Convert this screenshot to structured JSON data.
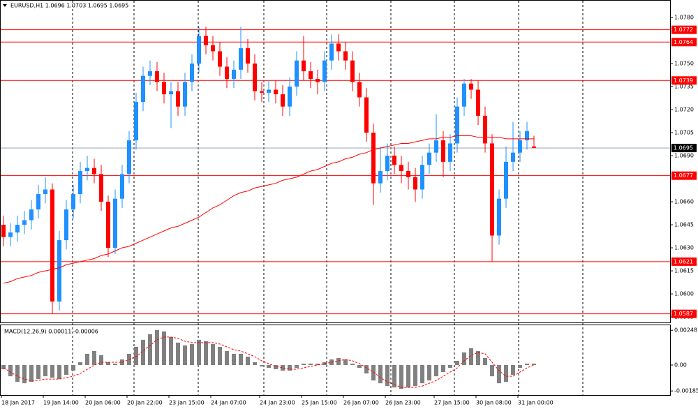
{
  "chart_data": {
    "type": "candlestick",
    "title": "EURUSD,H1  1.0696 1.0703 1.0695 1.0695",
    "categories": [
      "18 Jan 2017",
      null,
      null,
      null,
      null,
      null,
      "19 Jan 14:00",
      null,
      null,
      null,
      null,
      null,
      "20 Jan 06:00",
      null,
      null,
      null,
      null,
      null,
      "20 Jan 22:00",
      null,
      null,
      null,
      null,
      null,
      "23 Jan 15:00",
      null,
      null,
      null,
      null,
      null,
      "24 Jan 07:00",
      null,
      null,
      null,
      null,
      null,
      null,
      "24 Jan 23:00",
      null,
      null,
      null,
      null,
      null,
      "25 Jan 15:00",
      null,
      null,
      null,
      null,
      null,
      "26 Jan 07:00",
      null,
      null,
      null,
      null,
      null,
      "26 Jan 23:00",
      null,
      null,
      null,
      null,
      null,
      null,
      "27 Jan 15:00",
      null,
      null,
      null,
      null,
      null,
      "30 Jan 08:00",
      null,
      null,
      null,
      null,
      null,
      "31 Jan 00:00",
      null,
      null
    ],
    "open": [
      1.0645,
      1.0637,
      1.064,
      1.0645,
      1.0648,
      1.0655,
      1.0665,
      1.0668,
      1.0595,
      1.0635,
      1.0655,
      1.0665,
      1.068,
      1.0682,
      1.0678,
      1.066,
      1.063,
      1.0662,
      1.0678,
      1.07,
      1.0725,
      1.0742,
      1.0745,
      1.0738,
      1.073,
      1.0732,
      1.0722,
      1.0738,
      1.075,
      1.0768,
      1.0762,
      1.0758,
      1.0748,
      1.074,
      1.0746,
      1.076,
      1.075,
      1.0732,
      1.0731,
      1.0733,
      1.073,
      1.0722,
      1.0735,
      1.0752,
      1.0745,
      1.074,
      1.0738,
      1.0752,
      1.0763,
      1.0758,
      1.0752,
      1.0738,
      1.0728,
      1.0705,
      1.0672,
      1.068,
      1.069,
      1.0684,
      1.068,
      1.0676,
      1.0668,
      1.0684,
      1.0692,
      1.07,
      1.0686,
      1.0698,
      1.0722,
      1.0737,
      1.0733,
      1.0716,
      1.0698,
      1.0638,
      1.0662,
      1.0686,
      1.0692,
      1.07,
      1.0696
    ],
    "high": [
      1.0651,
      1.0646,
      1.0651,
      1.0654,
      1.0661,
      1.0671,
      1.0676,
      1.0672,
      1.0641,
      1.0661,
      1.0671,
      1.0686,
      1.069,
      1.0688,
      1.0684,
      1.0664,
      1.0668,
      1.0684,
      1.0706,
      1.0731,
      1.0748,
      1.0752,
      1.0751,
      1.0744,
      1.0738,
      1.0738,
      1.0744,
      1.0756,
      1.0774,
      1.0774,
      1.0768,
      1.0764,
      1.0754,
      1.0752,
      1.0774,
      1.0766,
      1.0756,
      1.0738,
      1.0739,
      1.0739,
      1.0736,
      1.0741,
      1.0758,
      1.0768,
      1.0751,
      1.0746,
      1.0758,
      1.0769,
      1.0769,
      1.0764,
      1.0758,
      1.0744,
      1.0734,
      1.0711,
      1.0696,
      1.0698,
      1.0696,
      1.069,
      1.0686,
      1.0682,
      1.069,
      1.0698,
      1.0717,
      1.0706,
      1.0704,
      1.0728,
      1.074,
      1.074,
      1.0739,
      1.0722,
      1.0704,
      1.0668,
      1.0696,
      1.0712,
      1.0706,
      1.0712,
      1.0703
    ],
    "low": [
      1.0631,
      1.0631,
      1.0634,
      1.0639,
      1.0642,
      1.0649,
      1.0659,
      1.0587,
      1.0589,
      1.0629,
      1.0649,
      1.0659,
      1.0674,
      1.0672,
      1.0654,
      1.0624,
      1.0626,
      1.0656,
      1.0672,
      1.0694,
      1.0719,
      1.0736,
      1.0732,
      1.0724,
      1.0708,
      1.0716,
      1.0716,
      1.0732,
      1.0744,
      1.0756,
      1.0752,
      1.0742,
      1.0734,
      1.0734,
      1.074,
      1.0744,
      1.0726,
      1.0725,
      1.0725,
      1.0724,
      1.0716,
      1.0716,
      1.0729,
      1.0739,
      1.0734,
      1.073,
      1.0732,
      1.0746,
      1.0752,
      1.0746,
      1.0732,
      1.0722,
      1.0699,
      1.0658,
      1.0666,
      1.0674,
      1.0678,
      1.0672,
      1.0668,
      1.066,
      1.0662,
      1.0678,
      1.0686,
      1.0676,
      1.068,
      1.0692,
      1.0716,
      1.0727,
      1.071,
      1.0692,
      1.0621,
      1.0632,
      1.0656,
      1.068,
      1.0686,
      1.0694,
      1.0695
    ],
    "close": [
      1.0637,
      1.064,
      1.0645,
      1.0648,
      1.0655,
      1.0665,
      1.0668,
      1.0595,
      1.0635,
      1.0655,
      1.0665,
      1.068,
      1.0682,
      1.0678,
      1.066,
      1.063,
      1.0662,
      1.0678,
      1.07,
      1.0725,
      1.0742,
      1.0745,
      1.0738,
      1.073,
      1.0732,
      1.0722,
      1.0738,
      1.075,
      1.0768,
      1.0762,
      1.0758,
      1.0748,
      1.074,
      1.0746,
      1.076,
      1.075,
      1.0732,
      1.0731,
      1.0733,
      1.073,
      1.0722,
      1.0735,
      1.0752,
      1.0745,
      1.074,
      1.0738,
      1.0752,
      1.0763,
      1.0758,
      1.0752,
      1.0738,
      1.0728,
      1.0705,
      1.0672,
      1.068,
      1.069,
      1.0684,
      1.068,
      1.0676,
      1.0668,
      1.0684,
      1.0692,
      1.07,
      1.0686,
      1.0698,
      1.0722,
      1.0737,
      1.0733,
      1.0716,
      1.0698,
      1.0638,
      1.0662,
      1.0686,
      1.0692,
      1.07,
      1.0706,
      1.0695
    ],
    "up_color": "#1e90ff",
    "down_color": "#ff0000",
    "moving_average": {
      "color": "#ff0000",
      "values": [
        1.0607,
        1.0608,
        1.061,
        1.0611,
        1.0612,
        1.0614,
        1.0615,
        1.0616,
        1.0617,
        1.0619,
        1.062,
        1.0621,
        1.0622,
        1.0623,
        1.0625,
        1.0626,
        1.0628,
        1.063,
        1.0631,
        1.0633,
        1.0635,
        1.0637,
        1.0639,
        1.0641,
        1.0643,
        1.0644,
        1.0646,
        1.0648,
        1.065,
        1.0653,
        1.0656,
        1.0658,
        1.0661,
        1.0664,
        1.0666,
        1.0667,
        1.0669,
        1.067,
        1.0671,
        1.0672,
        1.0674,
        1.0675,
        1.0676,
        1.0678,
        1.068,
        1.0681,
        1.0683,
        1.0685,
        1.0686,
        1.0688,
        1.0689,
        1.0691,
        1.0692,
        1.0694,
        1.0695,
        1.0696,
        1.0697,
        1.0698,
        1.0698,
        1.0699,
        1.07,
        1.0701,
        1.0701,
        1.0702,
        1.0702,
        1.0703,
        1.0703,
        1.0703,
        1.0702,
        1.0702,
        1.0702,
        1.0702,
        1.0701,
        1.0701,
        1.0701,
        1.0701,
        1.0701
      ]
    },
    "levels": [
      {
        "value": 1.0772,
        "label": "1.0772"
      },
      {
        "value": 1.0764,
        "label": "1.0764"
      },
      {
        "value": 1.0739,
        "label": "1.0739"
      },
      {
        "value": 1.0677,
        "label": "1.0677"
      },
      {
        "value": 1.0621,
        "label": "1.0621"
      },
      {
        "value": 1.0587,
        "label": "1.0587"
      }
    ],
    "level_color": "#ff0000",
    "current_price": {
      "value": 1.0695,
      "label": "1.0695"
    },
    "ylim": [
      1.05814,
      1.07914
    ],
    "yticks": [
      {
        "value": 1.078,
        "label": "1.0780"
      },
      {
        "value": 1.075,
        "label": "1.0750"
      },
      {
        "value": 1.0735,
        "label": "1.0735"
      },
      {
        "value": 1.072,
        "label": "1.0720"
      },
      {
        "value": 1.0705,
        "label": "1.0705"
      },
      {
        "value": 1.069,
        "label": "1.0690"
      },
      {
        "value": 1.066,
        "label": "1.0660"
      },
      {
        "value": 1.0645,
        "label": "1.0645"
      },
      {
        "value": 1.063,
        "label": "1.0630"
      },
      {
        "value": 1.0615,
        "label": "1.0615"
      },
      {
        "value": 1.06,
        "label": "1.0600"
      },
      {
        "value": 1.0585,
        "label": "1.0585"
      }
    ],
    "macd": {
      "type": "bar",
      "title": "MACD(12,26,9) 0.00011 -0.00006",
      "color": "#808080",
      "signal_color": "#ff0000",
      "values": [
        -0.0003,
        -0.0008,
        -0.0012,
        -0.0013,
        -0.0012,
        -0.001,
        -0.0008,
        -0.0009,
        -0.001,
        -0.0007,
        -0.0004,
        0.0002,
        0.0008,
        0.001,
        0.0007,
        0.0002,
        0.0001,
        0.0004,
        0.0008,
        0.0013,
        0.0018,
        0.0022,
        0.0025,
        0.0024,
        0.002,
        0.0016,
        0.0014,
        0.0015,
        0.0018,
        0.0017,
        0.0015,
        0.0013,
        0.001,
        0.0008,
        0.0008,
        0.0006,
        0.0002,
        -0.0001,
        -0.0002,
        -0.0003,
        -0.0004,
        -0.0004,
        -0.0002,
        0.0001,
        0.0001,
        0.0001,
        0.0002,
        0.0004,
        0.0005,
        0.0004,
        0.0001,
        -0.0002,
        -0.0006,
        -0.0011,
        -0.0013,
        -0.0015,
        -0.0016,
        -0.0017,
        -0.0016,
        -0.0015,
        -0.0013,
        -0.0011,
        -0.0008,
        -0.0005,
        -0.0002,
        0.0003,
        0.0009,
        0.0012,
        0.001,
        0.0005,
        -0.0008,
        -0.0013,
        -0.0012,
        -0.0007,
        -0.0002,
        0.0001,
        0.0001
      ],
      "signal": [
        -0.0002,
        -0.0005,
        -0.0008,
        -0.001,
        -0.0011,
        -0.0011,
        -0.001,
        -0.001,
        -0.001,
        -0.0009,
        -0.0008,
        -0.0006,
        -0.0003,
        0.0,
        0.0002,
        0.0002,
        0.0002,
        0.0002,
        0.0004,
        0.0006,
        0.001,
        0.0014,
        0.0018,
        0.002,
        0.002,
        0.0019,
        0.0017,
        0.0016,
        0.0016,
        0.0016,
        0.0016,
        0.0015,
        0.0013,
        0.0011,
        0.001,
        0.0008,
        0.0006,
        0.0003,
        0.0001,
        -0.0001,
        -0.0002,
        -0.0003,
        -0.0003,
        -0.0002,
        -0.0001,
        0.0,
        0.0001,
        0.0002,
        0.0003,
        0.0004,
        0.0003,
        0.0001,
        -0.0002,
        -0.0005,
        -0.0009,
        -0.0012,
        -0.0014,
        -0.0016,
        -0.0016,
        -0.0016,
        -0.0015,
        -0.0013,
        -0.0011,
        -0.0008,
        -0.0005,
        -0.0002,
        0.0003,
        0.0007,
        0.0009,
        0.0008,
        0.0002,
        -0.0004,
        -0.0008,
        -0.0008,
        -0.0005,
        -0.0002,
        0.0
      ],
      "ylim": [
        -0.00214,
        0.00284
      ],
      "yticks": [
        {
          "value": 0.00248,
          "label": "0.00248"
        },
        {
          "value": 0,
          "label": "0.00"
        },
        {
          "value": -0.00185,
          "label": "-0.00185"
        }
      ]
    }
  }
}
